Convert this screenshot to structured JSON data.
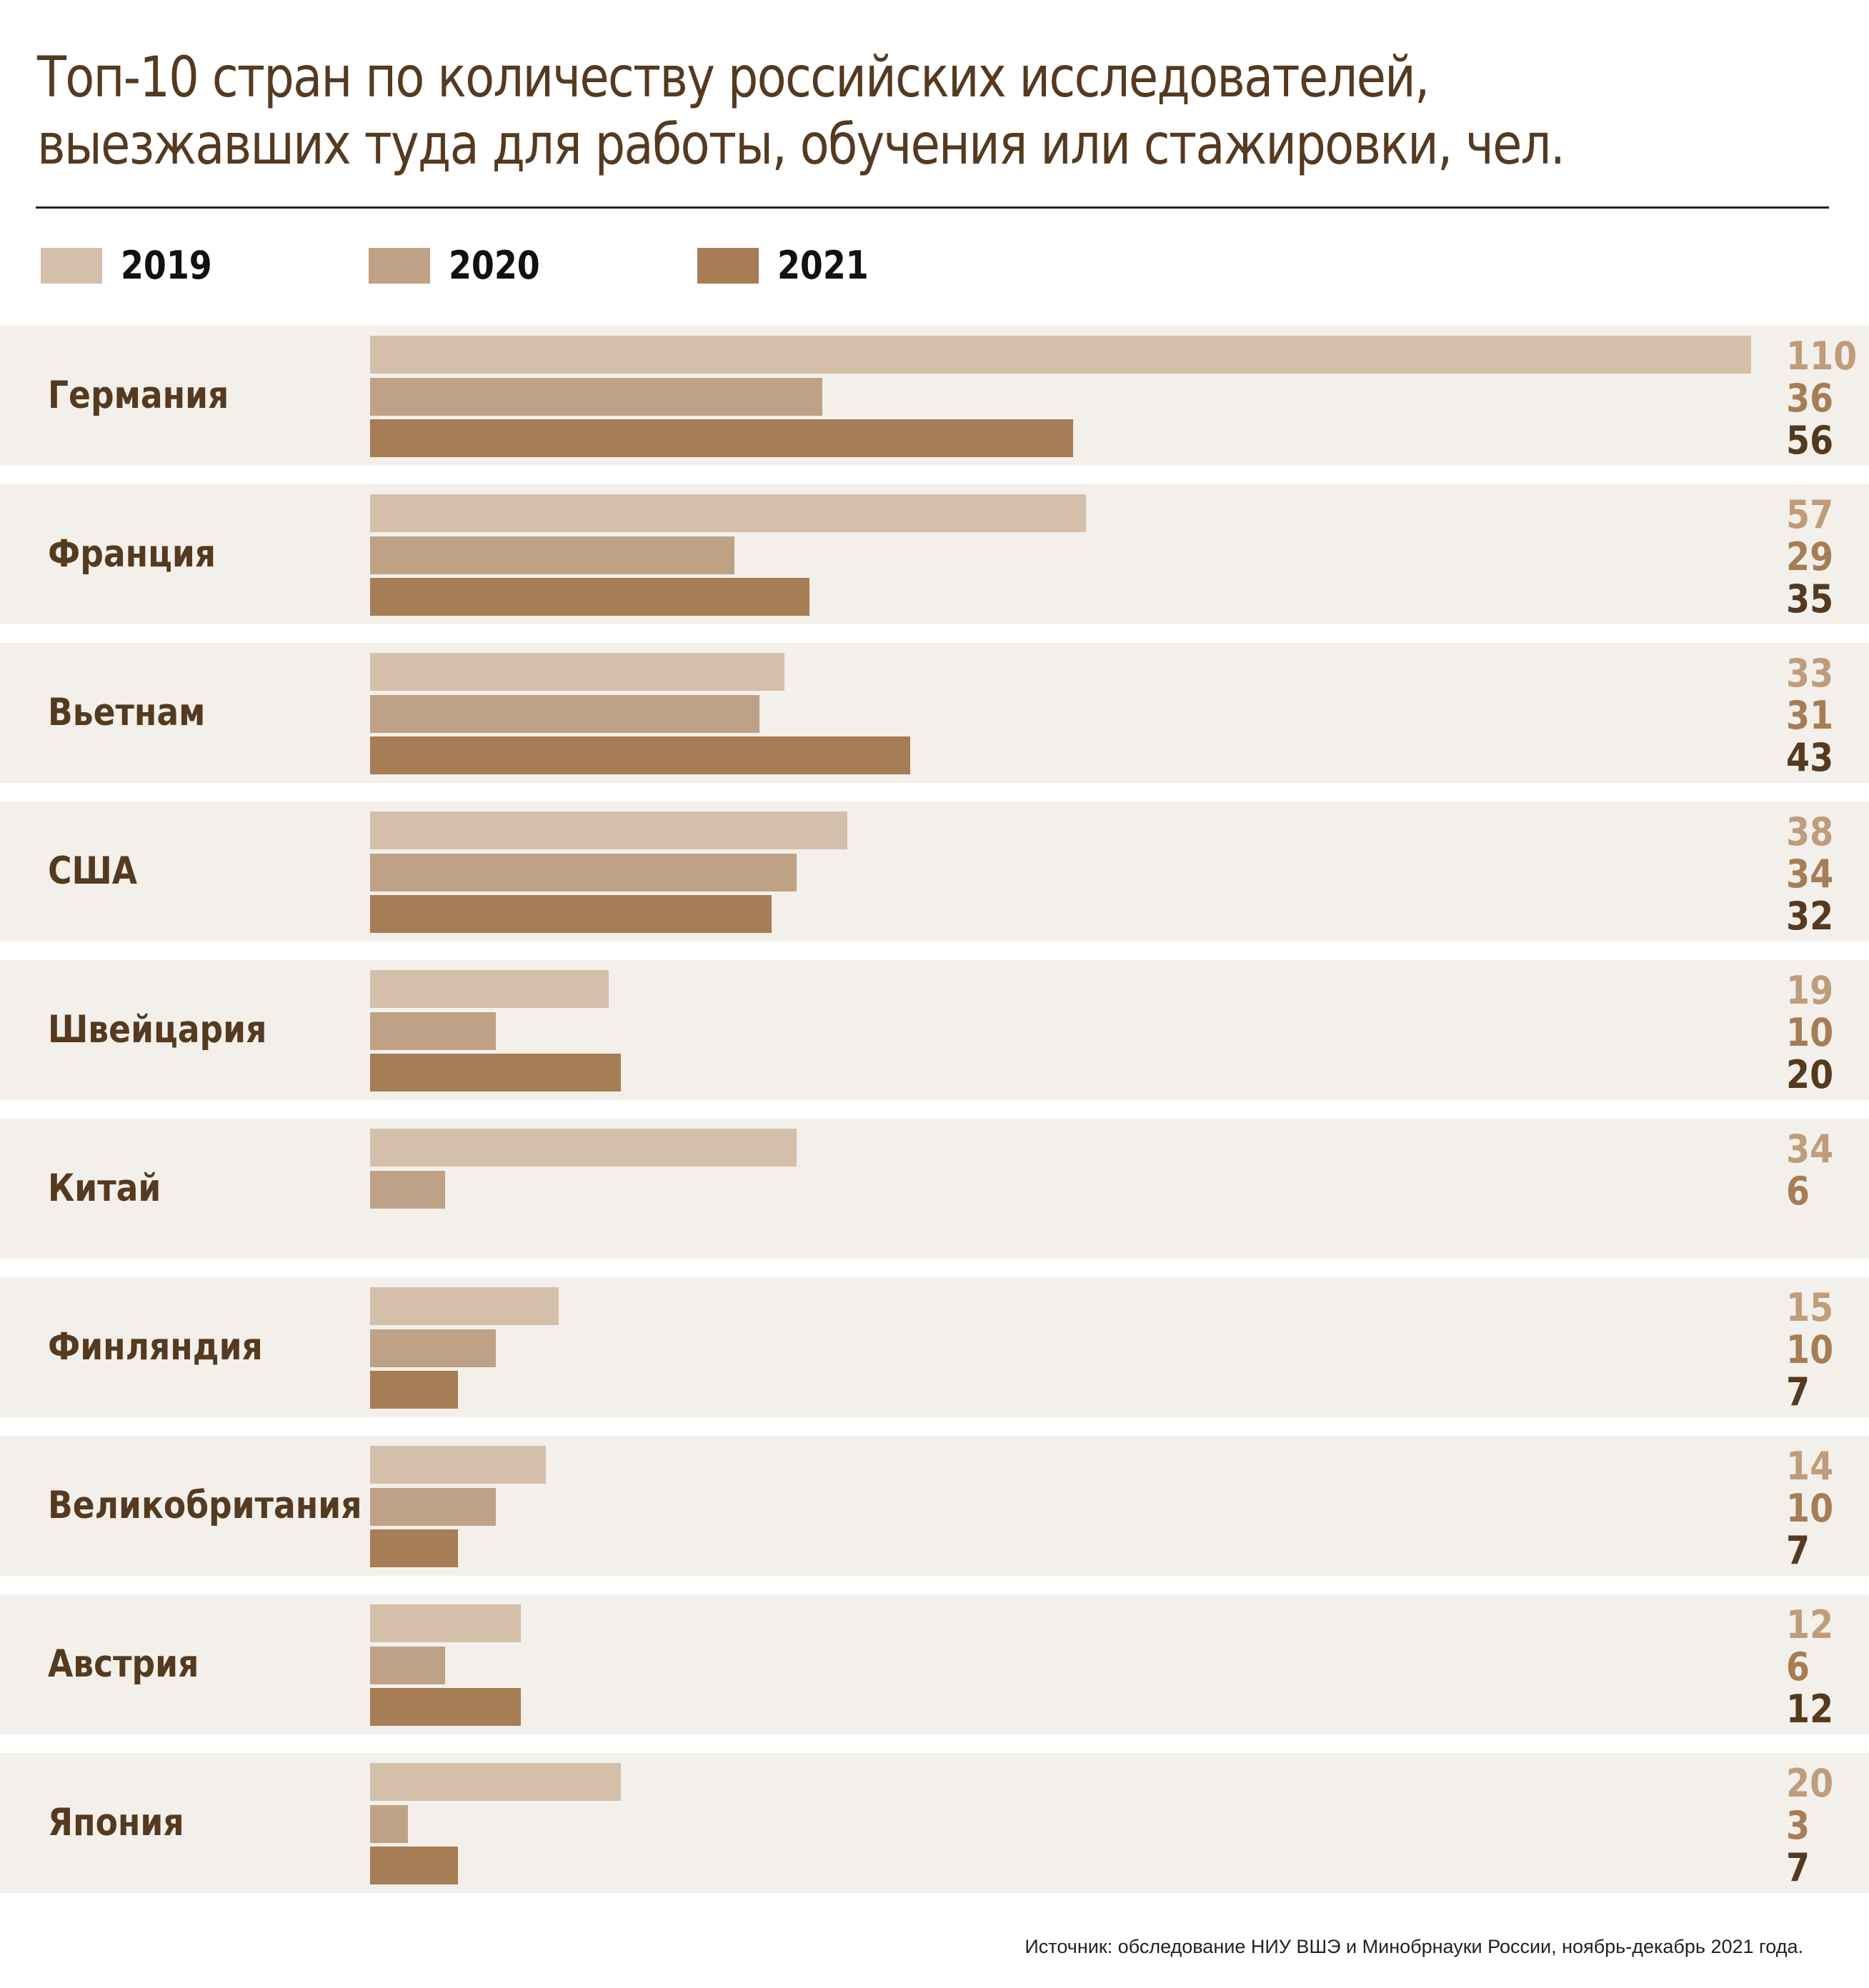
{
  "chart_data": {
    "type": "bar",
    "orientation": "horizontal",
    "title_lines": [
      "Топ-10 стран по количеству российских исследователей,",
      "выезжавших туда для работы, обучения или стажировки, чел."
    ],
    "categories": [
      "Германия",
      "Франция",
      "Вьетнам",
      "США",
      "Швейцария",
      "Китай",
      "Финляндия",
      "Великобритания",
      "Австрия",
      "Япония"
    ],
    "series": [
      {
        "name": "2019",
        "color": "#d4bfab",
        "label_color": "#bf9c7b",
        "values": [
          110,
          57,
          33,
          38,
          19,
          34,
          15,
          14,
          12,
          20
        ]
      },
      {
        "name": "2020",
        "color": "#bfa285",
        "label_color": "#a67d54",
        "values": [
          36,
          29,
          31,
          34,
          10,
          6,
          10,
          10,
          6,
          3
        ]
      },
      {
        "name": "2021",
        "color": "#a67d54",
        "label_color": "#553a20",
        "values": [
          56,
          35,
          43,
          32,
          20,
          null,
          7,
          7,
          12,
          7
        ]
      }
    ],
    "xlim": [
      0,
      110
    ],
    "grid": false,
    "legend_position": "top-left",
    "source": "Источник: обследование НИУ ВШЭ и Минобрнауки России, ноябрь-декабрь 2021 года."
  }
}
